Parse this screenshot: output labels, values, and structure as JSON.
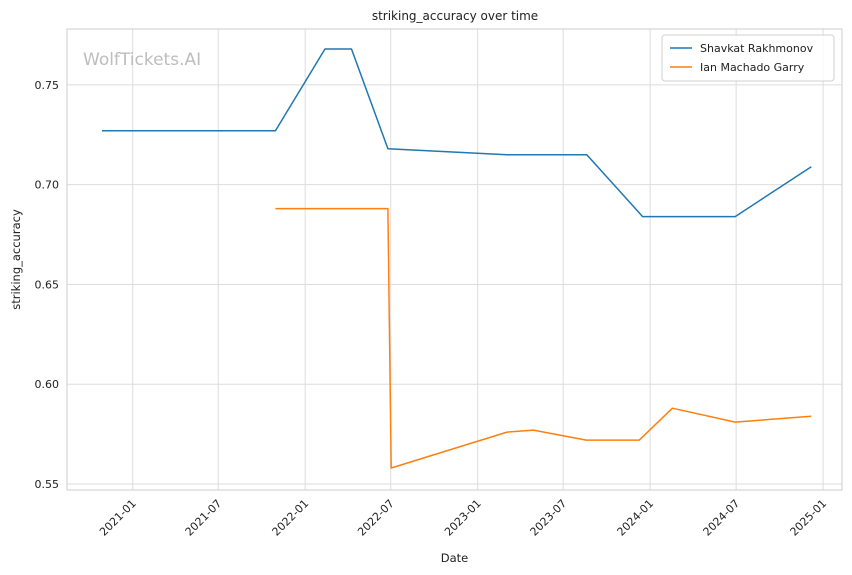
{
  "chart_data": {
    "type": "line",
    "title": "striking_accuracy over time",
    "xlabel": "Date",
    "ylabel": "striking_accuracy",
    "watermark": "WolfTickets.AI",
    "xlim": [
      "2020-08-15",
      "2025-02-10"
    ],
    "ylim": [
      0.547,
      0.778
    ],
    "xticks": [
      "2021-01-01",
      "2021-07-01",
      "2022-01-01",
      "2022-07-01",
      "2023-01-01",
      "2023-07-01",
      "2024-01-01",
      "2024-07-01",
      "2025-01-01"
    ],
    "xtick_labels": [
      "2021-01",
      "2021-07",
      "2022-01",
      "2022-07",
      "2023-01",
      "2023-07",
      "2024-01",
      "2024-07",
      "2025-01"
    ],
    "yticks": [
      0.55,
      0.6,
      0.65,
      0.7,
      0.75
    ],
    "ytick_labels": [
      "0.55",
      "0.60",
      "0.65",
      "0.70",
      "0.75"
    ],
    "grid": true,
    "legend_position": "top-right",
    "series": [
      {
        "name": "Shavkat Rakhmonov",
        "color": "#1f77b4",
        "x": [
          "2020-10-28",
          "2021-10-30",
          "2022-02-12",
          "2022-04-09",
          "2022-06-25",
          "2023-03-04",
          "2023-08-20",
          "2023-12-16",
          "2024-06-29",
          "2024-12-07"
        ],
        "y": [
          0.727,
          0.727,
          0.768,
          0.768,
          0.718,
          0.715,
          0.715,
          0.684,
          0.684,
          0.709
        ]
      },
      {
        "name": "Ian Machado Garry",
        "color": "#ff7f0e",
        "x": [
          "2021-10-30",
          "2022-06-25",
          "2022-07-02",
          "2023-03-04",
          "2023-04-29",
          "2023-08-19",
          "2023-12-09",
          "2024-02-17",
          "2024-06-29",
          "2024-12-07"
        ],
        "y": [
          0.688,
          0.688,
          0.558,
          0.576,
          0.577,
          0.572,
          0.572,
          0.588,
          0.581,
          0.584
        ]
      }
    ]
  }
}
